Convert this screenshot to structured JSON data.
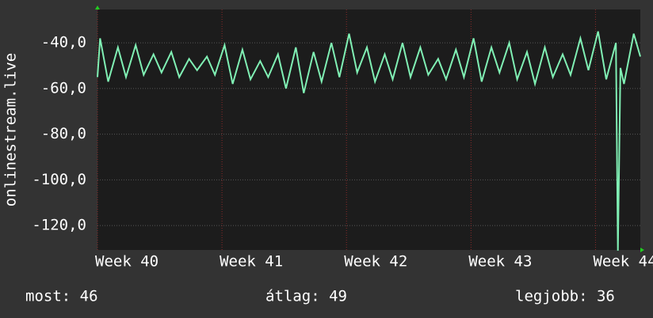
{
  "chart_data": {
    "type": "line",
    "y_label": "onlinestream.live",
    "x": [
      40.0,
      40.021,
      40.086,
      40.164,
      40.229,
      40.307,
      40.371,
      40.45,
      40.514,
      40.593,
      40.657,
      40.736,
      40.8,
      40.879,
      40.943,
      41.021,
      41.086,
      41.164,
      41.229,
      41.307,
      41.371,
      41.45,
      41.514,
      41.593,
      41.657,
      41.736,
      41.8,
      41.879,
      41.943,
      42.021,
      42.086,
      42.164,
      42.229,
      42.307,
      42.371,
      42.45,
      42.514,
      42.593,
      42.657,
      42.736,
      42.8,
      42.879,
      42.943,
      43.021,
      43.086,
      43.164,
      43.229,
      43.307,
      43.371,
      43.45,
      43.514,
      43.593,
      43.657,
      43.736,
      43.8,
      43.879,
      43.943,
      44.021,
      44.086,
      44.164,
      44.18,
      44.2,
      44.229,
      44.307,
      44.36
    ],
    "series": [
      {
        "name": "onlinestream.live",
        "color": "#80f0b4",
        "values": [
          -55,
          -38,
          -57,
          -42,
          -55,
          -41,
          -54,
          -45,
          -53,
          -44,
          -55,
          -47,
          -52,
          -46,
          -54,
          -41,
          -58,
          -43,
          -56,
          -48,
          -55,
          -45,
          -60,
          -42,
          -62,
          -44,
          -57,
          -40,
          -55,
          -36,
          -53,
          -42,
          -57,
          -45,
          -56,
          -40,
          -55,
          -42,
          -54,
          -47,
          -56,
          -43,
          -55,
          -38,
          -57,
          -42,
          -53,
          -40,
          -56,
          -44,
          -58,
          -42,
          -55,
          -45,
          -54,
          -38,
          -52,
          -35,
          -56,
          -40,
          -131,
          -51,
          -58,
          -36,
          -46
        ]
      }
    ],
    "xlim": [
      40,
      44.36
    ],
    "xticks": [
      {
        "value": 40,
        "label": "Week 40"
      },
      {
        "value": 41,
        "label": "Week 41"
      },
      {
        "value": 42,
        "label": "Week 42"
      },
      {
        "value": 43,
        "label": "Week 43"
      },
      {
        "value": 44,
        "label": "Week 44"
      }
    ],
    "ylim": [
      -130.7,
      -25.4
    ],
    "yticks": [
      {
        "value": -40,
        "label": "-40,0"
      },
      {
        "value": -60,
        "label": "-60,0"
      },
      {
        "value": -80,
        "label": "-80,0"
      },
      {
        "value": -100,
        "label": "-100,0"
      },
      {
        "value": -120,
        "label": "-120,0"
      }
    ],
    "grid": true,
    "stats": [
      "most: 46",
      "átlag: 49",
      "legjobb: 36"
    ]
  }
}
